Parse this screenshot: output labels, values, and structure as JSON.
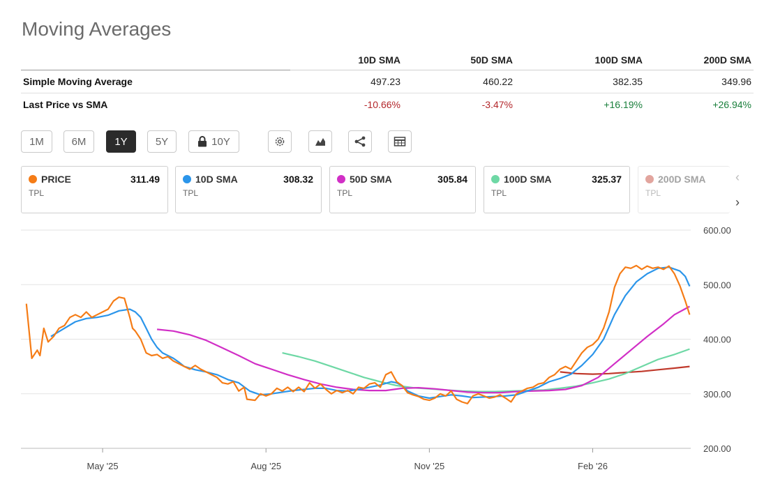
{
  "title": "Moving Averages",
  "table": {
    "headers": [
      "10D SMA",
      "50D SMA",
      "100D SMA",
      "200D SMA"
    ],
    "rows": [
      {
        "label": "Simple Moving Average",
        "cells": [
          "497.23",
          "460.22",
          "382.35",
          "349.96"
        ]
      },
      {
        "label": "Last Price vs SMA",
        "cells": [
          "-10.66%",
          "-3.47%",
          "+16.19%",
          "+26.94%"
        ]
      }
    ]
  },
  "periods": [
    "1M",
    "6M",
    "1Y",
    "5Y",
    "10Y"
  ],
  "active_period": "1Y",
  "tools": [
    "settings-icon",
    "chart-type-icon",
    "share-icon",
    "table-icon"
  ],
  "cards": [
    {
      "name": "PRICE",
      "value": "311.49",
      "ticker": "TPL",
      "color": "#f57c16"
    },
    {
      "name": "10D SMA",
      "value": "308.32",
      "ticker": "TPL",
      "color": "#2b95ea"
    },
    {
      "name": "50D SMA",
      "value": "305.84",
      "ticker": "TPL",
      "color": "#d12fc6"
    },
    {
      "name": "100D SMA",
      "value": "325.37",
      "ticker": "TPL",
      "color": "#6ed8a5"
    },
    {
      "name": "200D SMA",
      "value": "",
      "ticker": "TPL",
      "color": "#c0392b"
    }
  ],
  "nav": {
    "prev": "‹",
    "next": "›"
  },
  "chart_data": {
    "type": "line",
    "y_ticks": [
      "600.00",
      "500.00",
      "400.00",
      "300.00",
      "200.00"
    ],
    "ylim": [
      200,
      600
    ],
    "x_ticks": [
      "May '25",
      "Aug '25",
      "Nov '25",
      "Feb '26"
    ],
    "x_tick_positions": [
      1.5,
      4.5,
      7.5,
      10.5
    ],
    "xlim": [
      0,
      12.3
    ],
    "grid": true,
    "series": [
      {
        "name": "PRICE",
        "color": "#f57c16",
        "points": [
          [
            0.1,
            465
          ],
          [
            0.2,
            365
          ],
          [
            0.3,
            380
          ],
          [
            0.35,
            370
          ],
          [
            0.42,
            420
          ],
          [
            0.5,
            395
          ],
          [
            0.6,
            405
          ],
          [
            0.7,
            420
          ],
          [
            0.8,
            425
          ],
          [
            0.9,
            440
          ],
          [
            1.0,
            445
          ],
          [
            1.1,
            440
          ],
          [
            1.2,
            450
          ],
          [
            1.3,
            440
          ],
          [
            1.4,
            445
          ],
          [
            1.5,
            450
          ],
          [
            1.6,
            455
          ],
          [
            1.7,
            470
          ],
          [
            1.8,
            477
          ],
          [
            1.9,
            475
          ],
          [
            2.0,
            440
          ],
          [
            2.05,
            420
          ],
          [
            2.1,
            415
          ],
          [
            2.2,
            400
          ],
          [
            2.3,
            375
          ],
          [
            2.4,
            370
          ],
          [
            2.5,
            372
          ],
          [
            2.6,
            365
          ],
          [
            2.7,
            368
          ],
          [
            2.8,
            360
          ],
          [
            2.9,
            355
          ],
          [
            3.0,
            350
          ],
          [
            3.1,
            345
          ],
          [
            3.2,
            352
          ],
          [
            3.3,
            345
          ],
          [
            3.4,
            340
          ],
          [
            3.5,
            335
          ],
          [
            3.6,
            330
          ],
          [
            3.7,
            320
          ],
          [
            3.8,
            318
          ],
          [
            3.9,
            322
          ],
          [
            4.0,
            305
          ],
          [
            4.1,
            312
          ],
          [
            4.15,
            290
          ],
          [
            4.3,
            288
          ],
          [
            4.4,
            300
          ],
          [
            4.5,
            296
          ],
          [
            4.6,
            300
          ],
          [
            4.7,
            310
          ],
          [
            4.8,
            305
          ],
          [
            4.9,
            312
          ],
          [
            5.0,
            304
          ],
          [
            5.1,
            312
          ],
          [
            5.2,
            304
          ],
          [
            5.3,
            320
          ],
          [
            5.4,
            310
          ],
          [
            5.5,
            318
          ],
          [
            5.6,
            308
          ],
          [
            5.7,
            300
          ],
          [
            5.8,
            306
          ],
          [
            5.9,
            302
          ],
          [
            6.0,
            306
          ],
          [
            6.1,
            300
          ],
          [
            6.2,
            312
          ],
          [
            6.3,
            310
          ],
          [
            6.4,
            318
          ],
          [
            6.5,
            320
          ],
          [
            6.6,
            312
          ],
          [
            6.7,
            335
          ],
          [
            6.8,
            340
          ],
          [
            6.9,
            322
          ],
          [
            7.0,
            315
          ],
          [
            7.1,
            302
          ],
          [
            7.2,
            298
          ],
          [
            7.3,
            295
          ],
          [
            7.4,
            290
          ],
          [
            7.5,
            288
          ],
          [
            7.6,
            292
          ],
          [
            7.7,
            300
          ],
          [
            7.8,
            296
          ],
          [
            7.9,
            305
          ],
          [
            8.0,
            290
          ],
          [
            8.1,
            285
          ],
          [
            8.2,
            282
          ],
          [
            8.3,
            296
          ],
          [
            8.4,
            300
          ],
          [
            8.5,
            296
          ],
          [
            8.6,
            292
          ],
          [
            8.7,
            294
          ],
          [
            8.8,
            298
          ],
          [
            8.9,
            292
          ],
          [
            9.0,
            285
          ],
          [
            9.1,
            300
          ],
          [
            9.2,
            305
          ],
          [
            9.3,
            310
          ],
          [
            9.4,
            312
          ],
          [
            9.5,
            318
          ],
          [
            9.6,
            320
          ],
          [
            9.7,
            330
          ],
          [
            9.8,
            335
          ],
          [
            9.9,
            345
          ],
          [
            10.0,
            350
          ],
          [
            10.1,
            345
          ],
          [
            10.2,
            360
          ],
          [
            10.3,
            375
          ],
          [
            10.4,
            385
          ],
          [
            10.5,
            390
          ],
          [
            10.6,
            400
          ],
          [
            10.7,
            420
          ],
          [
            10.8,
            450
          ],
          [
            10.9,
            495
          ],
          [
            11.0,
            520
          ],
          [
            11.1,
            532
          ],
          [
            11.2,
            530
          ],
          [
            11.3,
            535
          ],
          [
            11.4,
            528
          ],
          [
            11.5,
            534
          ],
          [
            11.6,
            530
          ],
          [
            11.7,
            532
          ],
          [
            11.8,
            528
          ],
          [
            11.9,
            534
          ],
          [
            12.0,
            520
          ],
          [
            12.1,
            498
          ],
          [
            12.2,
            470
          ],
          [
            12.28,
            445
          ]
        ]
      },
      {
        "name": "10D SMA",
        "color": "#2b95ea",
        "points": [
          [
            0.55,
            405
          ],
          [
            0.8,
            420
          ],
          [
            1.0,
            432
          ],
          [
            1.2,
            438
          ],
          [
            1.4,
            440
          ],
          [
            1.6,
            444
          ],
          [
            1.8,
            452
          ],
          [
            2.0,
            455
          ],
          [
            2.1,
            450
          ],
          [
            2.2,
            440
          ],
          [
            2.3,
            420
          ],
          [
            2.4,
            400
          ],
          [
            2.5,
            385
          ],
          [
            2.6,
            375
          ],
          [
            2.7,
            370
          ],
          [
            2.8,
            365
          ],
          [
            2.9,
            358
          ],
          [
            3.0,
            350
          ],
          [
            3.2,
            344
          ],
          [
            3.4,
            340
          ],
          [
            3.6,
            335
          ],
          [
            3.8,
            326
          ],
          [
            4.0,
            320
          ],
          [
            4.2,
            305
          ],
          [
            4.4,
            298
          ],
          [
            4.6,
            300
          ],
          [
            4.8,
            303
          ],
          [
            5.0,
            306
          ],
          [
            5.2,
            308
          ],
          [
            5.4,
            310
          ],
          [
            5.6,
            310
          ],
          [
            5.8,
            306
          ],
          [
            6.0,
            305
          ],
          [
            6.2,
            308
          ],
          [
            6.4,
            312
          ],
          [
            6.6,
            316
          ],
          [
            6.8,
            322
          ],
          [
            6.9,
            320
          ],
          [
            7.0,
            315
          ],
          [
            7.1,
            305
          ],
          [
            7.3,
            296
          ],
          [
            7.5,
            292
          ],
          [
            7.7,
            295
          ],
          [
            7.9,
            298
          ],
          [
            8.1,
            296
          ],
          [
            8.3,
            293
          ],
          [
            8.5,
            294
          ],
          [
            8.7,
            295
          ],
          [
            8.9,
            296
          ],
          [
            9.1,
            298
          ],
          [
            9.3,
            305
          ],
          [
            9.5,
            312
          ],
          [
            9.7,
            322
          ],
          [
            9.9,
            328
          ],
          [
            10.1,
            336
          ],
          [
            10.3,
            352
          ],
          [
            10.5,
            372
          ],
          [
            10.7,
            400
          ],
          [
            10.9,
            445
          ],
          [
            11.1,
            480
          ],
          [
            11.3,
            505
          ],
          [
            11.5,
            520
          ],
          [
            11.7,
            530
          ],
          [
            11.9,
            532
          ],
          [
            12.1,
            525
          ],
          [
            12.2,
            515
          ],
          [
            12.28,
            497
          ]
        ]
      },
      {
        "name": "50D SMA",
        "color": "#d12fc6",
        "points": [
          [
            2.5,
            418
          ],
          [
            2.8,
            415
          ],
          [
            3.1,
            408
          ],
          [
            3.4,
            398
          ],
          [
            3.7,
            384
          ],
          [
            4.0,
            370
          ],
          [
            4.3,
            355
          ],
          [
            4.6,
            345
          ],
          [
            4.9,
            335
          ],
          [
            5.2,
            326
          ],
          [
            5.5,
            318
          ],
          [
            5.8,
            312
          ],
          [
            6.1,
            308
          ],
          [
            6.4,
            306
          ],
          [
            6.7,
            306
          ],
          [
            7.0,
            310
          ],
          [
            7.3,
            311
          ],
          [
            7.6,
            309
          ],
          [
            7.9,
            306
          ],
          [
            8.2,
            303
          ],
          [
            8.5,
            302
          ],
          [
            8.8,
            302
          ],
          [
            9.1,
            304
          ],
          [
            9.4,
            305
          ],
          [
            9.7,
            306
          ],
          [
            10.0,
            308
          ],
          [
            10.3,
            315
          ],
          [
            10.6,
            330
          ],
          [
            10.9,
            355
          ],
          [
            11.2,
            380
          ],
          [
            11.5,
            405
          ],
          [
            11.8,
            428
          ],
          [
            12.0,
            445
          ],
          [
            12.15,
            453
          ],
          [
            12.28,
            460
          ]
        ]
      },
      {
        "name": "100D SMA",
        "color": "#6ed8a5",
        "points": [
          [
            4.8,
            375
          ],
          [
            5.1,
            368
          ],
          [
            5.4,
            360
          ],
          [
            5.7,
            350
          ],
          [
            6.0,
            340
          ],
          [
            6.3,
            330
          ],
          [
            6.6,
            322
          ],
          [
            6.9,
            315
          ],
          [
            7.2,
            311
          ],
          [
            7.5,
            309
          ],
          [
            7.8,
            307
          ],
          [
            8.1,
            305
          ],
          [
            8.4,
            304
          ],
          [
            8.7,
            304
          ],
          [
            9.0,
            305
          ],
          [
            9.3,
            306
          ],
          [
            9.6,
            307
          ],
          [
            9.9,
            310
          ],
          [
            10.2,
            314
          ],
          [
            10.5,
            320
          ],
          [
            10.8,
            327
          ],
          [
            11.1,
            337
          ],
          [
            11.4,
            350
          ],
          [
            11.7,
            363
          ],
          [
            12.0,
            372
          ],
          [
            12.28,
            382
          ]
        ]
      },
      {
        "name": "200D SMA",
        "color": "#c0392b",
        "points": [
          [
            9.9,
            340
          ],
          [
            10.2,
            337
          ],
          [
            10.5,
            336
          ],
          [
            10.8,
            337
          ],
          [
            11.1,
            339
          ],
          [
            11.4,
            341
          ],
          [
            11.7,
            344
          ],
          [
            12.0,
            347
          ],
          [
            12.28,
            350
          ]
        ]
      }
    ]
  }
}
